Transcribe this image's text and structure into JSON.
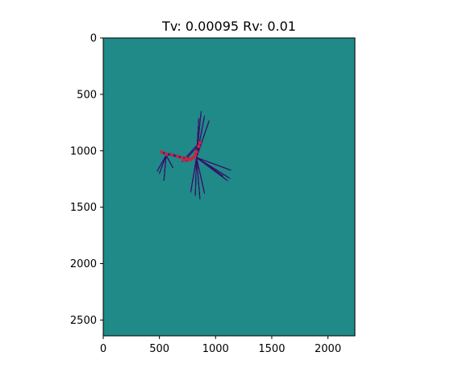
{
  "chart_data": {
    "type": "heatmap",
    "title": "Tv: 0.00095 Rv: 0.01",
    "xlabel": "",
    "ylabel": "",
    "xlim": [
      0,
      2240
    ],
    "ylim": [
      2640,
      0
    ],
    "x_ticks": [
      0,
      500,
      1000,
      1500,
      2000
    ],
    "y_ticks": [
      0,
      500,
      1000,
      1500,
      2000,
      2500
    ],
    "background_color": "#1f8a87",
    "trajectory_color": "#3b0f70",
    "marker_color": "#d1233d",
    "grid": false,
    "trajectory_fans": [
      {
        "origin": [
          830,
          1060
        ],
        "directions": [
          [
            870,
            660
          ],
          [
            900,
            700
          ],
          [
            940,
            740
          ],
          [
            850,
            720
          ]
        ]
      },
      {
        "origin": [
          830,
          1060
        ],
        "directions": [
          [
            1130,
            1170
          ],
          [
            1120,
            1240
          ],
          [
            1100,
            1260
          ],
          [
            1060,
            1220
          ]
        ]
      },
      {
        "origin": [
          830,
          1060
        ],
        "directions": [
          [
            820,
            1390
          ],
          [
            900,
            1370
          ],
          [
            860,
            1420
          ],
          [
            780,
            1360
          ]
        ]
      },
      {
        "origin": [
          560,
          1040
        ],
        "directions": [
          [
            500,
            1200
          ],
          [
            540,
            1260
          ],
          [
            480,
            1180
          ],
          [
            620,
            1150
          ]
        ]
      }
    ],
    "markers": [
      [
        520,
        1010
      ],
      [
        560,
        1030
      ],
      [
        610,
        1035
      ],
      [
        660,
        1050
      ],
      [
        700,
        1060
      ],
      [
        740,
        1070
      ],
      [
        780,
        1075
      ],
      [
        800,
        1060
      ],
      [
        820,
        1040
      ],
      [
        830,
        1010
      ],
      [
        850,
        960
      ],
      [
        860,
        930
      ],
      [
        720,
        1085
      ],
      [
        760,
        1080
      ]
    ]
  }
}
